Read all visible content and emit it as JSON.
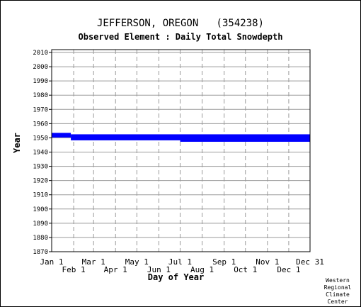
{
  "header": {
    "title": "JEFFERSON, OREGON   (354238)",
    "subtitle": "Observed Element : Daily Total Snowdepth"
  },
  "credit": [
    "Western",
    "Regional",
    "Climate",
    "Center"
  ],
  "colors": {
    "data": "#0000ff",
    "grid": "#9a9a9a",
    "axis": "#000000"
  },
  "chart_data": {
    "type": "scatter",
    "title": "JEFFERSON, OREGON   (354238)",
    "subtitle": "Observed Element : Daily Total Snowdepth",
    "xlabel": "Day of Year",
    "ylabel": "Year",
    "xlim": [
      1,
      365
    ],
    "ylim": [
      1870,
      2012
    ],
    "grid": true,
    "x_ticks": [
      {
        "label": "Jan 1",
        "day": 1
      },
      {
        "label": "Feb 1",
        "day": 32
      },
      {
        "label": "Mar 1",
        "day": 60
      },
      {
        "label": "Apr 1",
        "day": 91
      },
      {
        "label": "May 1",
        "day": 121
      },
      {
        "label": "Jun 1",
        "day": 152
      },
      {
        "label": "Jul 1",
        "day": 182
      },
      {
        "label": "Aug 1",
        "day": 213
      },
      {
        "label": "Sep 1",
        "day": 244
      },
      {
        "label": "Oct 1",
        "day": 274
      },
      {
        "label": "Nov 1",
        "day": 305
      },
      {
        "label": "Dec 1",
        "day": 335
      },
      {
        "label": "Dec 31",
        "day": 365
      }
    ],
    "y_ticks": [
      1870,
      1880,
      1890,
      1900,
      1910,
      1920,
      1930,
      1940,
      1950,
      1960,
      1970,
      1980,
      1990,
      2000,
      2010
    ],
    "series": [
      {
        "color": "#0000ff",
        "segments": [
          {
            "year": 1953,
            "start_day": 1,
            "end_day": 28
          },
          {
            "year": 1952,
            "start_day": 1,
            "end_day": 28
          },
          {
            "year": 1951,
            "start_day": 1,
            "end_day": 28
          },
          {
            "year": 1952,
            "start_day": 28,
            "end_day": 365
          },
          {
            "year": 1951,
            "start_day": 28,
            "end_day": 365
          },
          {
            "year": 1950,
            "start_day": 28,
            "end_day": 365
          },
          {
            "year": 1949,
            "start_day": 28,
            "end_day": 365
          },
          {
            "year": 1948,
            "start_day": 182,
            "end_day": 365
          }
        ]
      }
    ]
  }
}
